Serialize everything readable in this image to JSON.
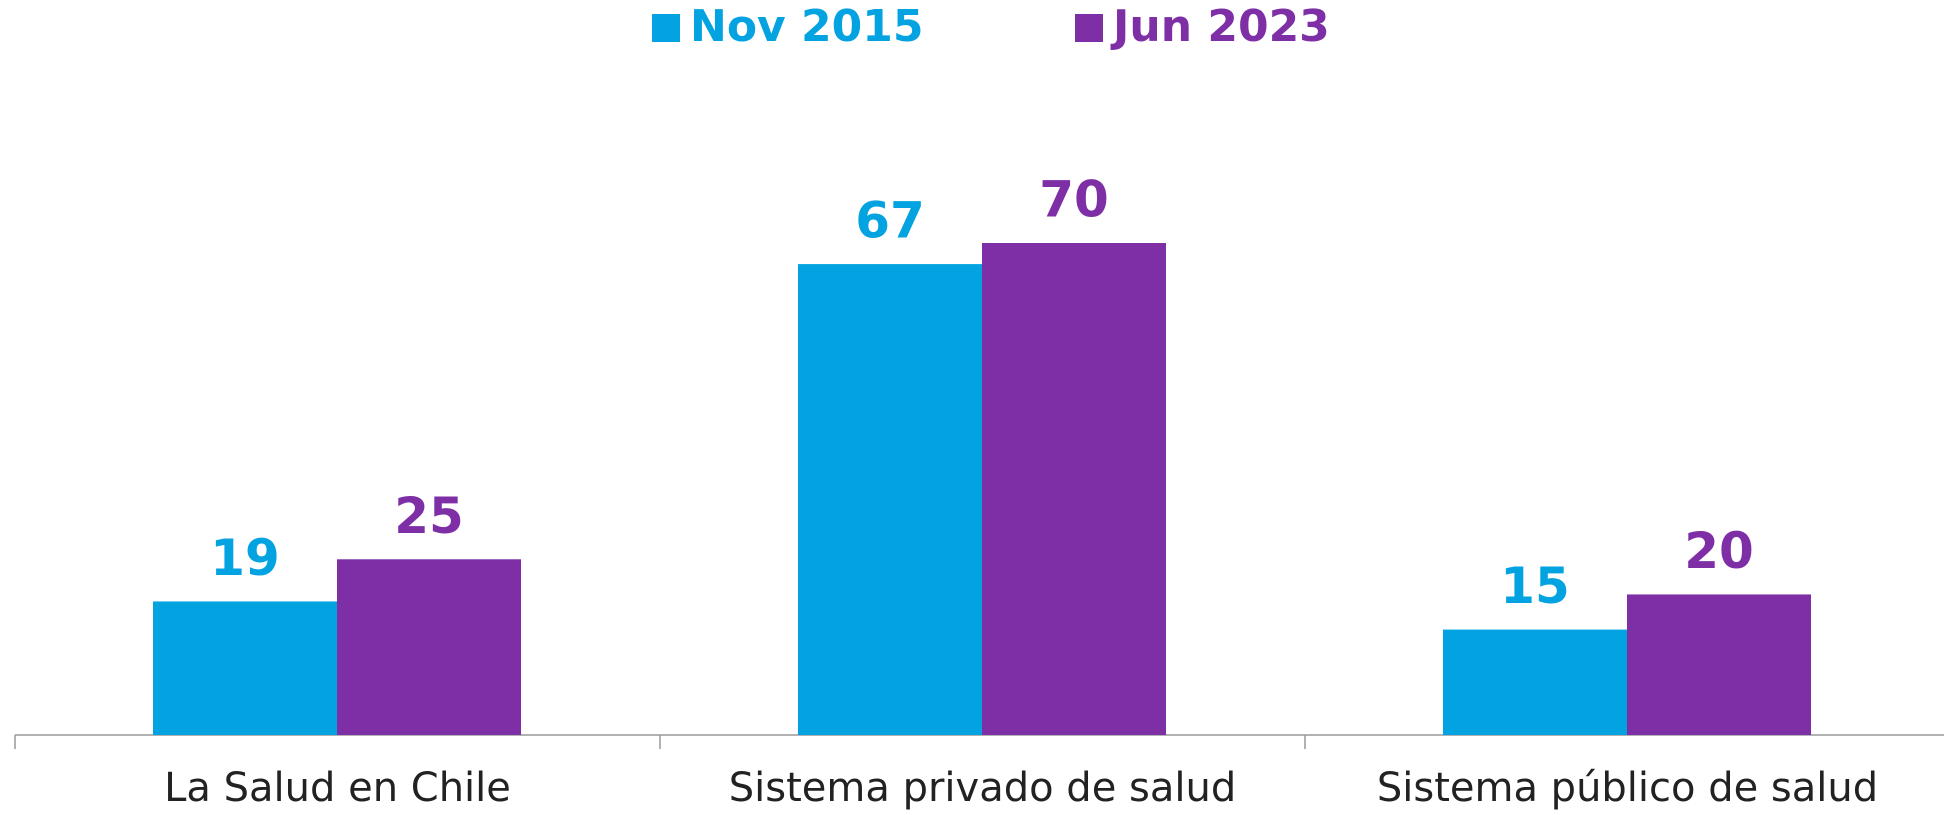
{
  "chart_data": {
    "type": "bar",
    "categories": [
      "La Salud en Chile",
      "Sistema privado de salud",
      "Sistema público de salud"
    ],
    "series": [
      {
        "name": "Nov 2015",
        "color": "#03a2e0",
        "values": [
          19,
          67,
          15
        ]
      },
      {
        "name": "Jun 2023",
        "color": "#7f2fa6",
        "values": [
          25,
          70,
          20
        ]
      }
    ],
    "legend": "top"
  }
}
